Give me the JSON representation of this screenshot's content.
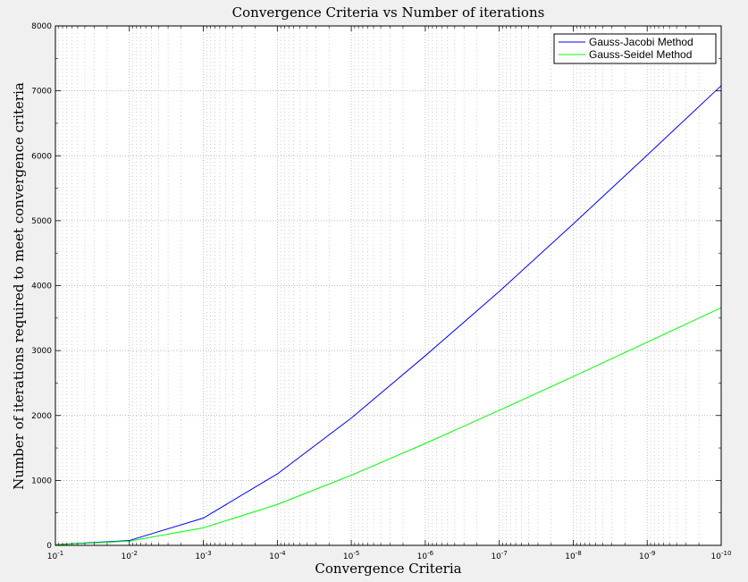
{
  "chart_data": {
    "type": "line",
    "title": "Convergence Criteria vs Number of iterations",
    "xlabel": "Convergence Criteria",
    "ylabel": "Number of iterations required to meet convergence criteria",
    "x_scale": "log",
    "x_reversed": true,
    "x": [
      0.1,
      0.01,
      0.001,
      0.0001,
      1e-05,
      1e-06,
      1e-07,
      1e-08,
      1e-09,
      1e-10
    ],
    "x_tick_labels": [
      {
        "base": "10",
        "exp": "-1"
      },
      {
        "base": "10",
        "exp": "-2"
      },
      {
        "base": "10",
        "exp": "-3"
      },
      {
        "base": "10",
        "exp": "-4"
      },
      {
        "base": "10",
        "exp": "-5"
      },
      {
        "base": "10",
        "exp": "-6"
      },
      {
        "base": "10",
        "exp": "-7"
      },
      {
        "base": "10",
        "exp": "-8"
      },
      {
        "base": "10",
        "exp": "-9"
      },
      {
        "base": "10",
        "exp": "-10"
      }
    ],
    "ylim": [
      0,
      8000
    ],
    "y_ticks": [
      "0",
      "1000",
      "2000",
      "3000",
      "4000",
      "5000",
      "6000",
      "7000",
      "8000"
    ],
    "grid": true,
    "minor_grid": true,
    "legend_position": "top-right",
    "series": [
      {
        "name": "Gauss-Jacobi Method",
        "color": "#0000ff",
        "values": [
          10,
          75,
          420,
          1100,
          1960,
          2920,
          3910,
          4950,
          6010,
          7080
        ]
      },
      {
        "name": "Gauss-Seidel Method",
        "color": "#00ff00",
        "values": [
          8,
          65,
          270,
          630,
          1080,
          1570,
          2080,
          2600,
          3130,
          3660
        ]
      }
    ]
  }
}
